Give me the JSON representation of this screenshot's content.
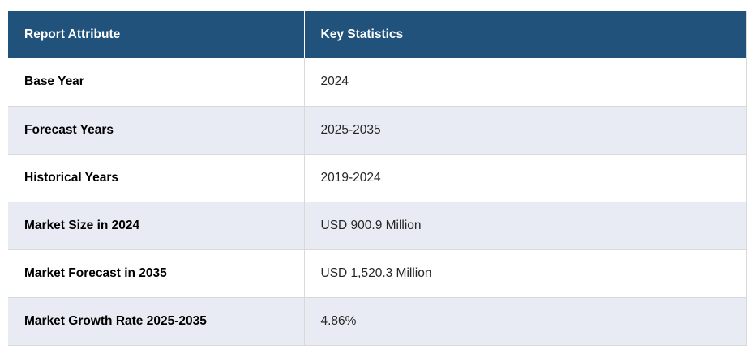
{
  "table": {
    "columns": [
      "Report Attribute",
      "Key Statistics"
    ],
    "rows": [
      {
        "attribute": "Base Year",
        "value": "2024"
      },
      {
        "attribute": "Forecast Years",
        "value": "2025-2035"
      },
      {
        "attribute": "Historical Years",
        "value": "2019-2024"
      },
      {
        "attribute": "Market Size in 2024",
        "value": "USD 900.9 Million"
      },
      {
        "attribute": "Market Forecast in 2035",
        "value": "USD 1,520.3 Million"
      },
      {
        "attribute": "Market Growth Rate 2025-2035",
        "value": "4.86%"
      }
    ]
  },
  "colors": {
    "header_bg": "#20527C",
    "header_text": "#FFFFFF",
    "row_bg": "#FFFFFF",
    "row_alt_bg": "#E8EAF4",
    "border": "#D9D9D9",
    "attribute_text": "#000000",
    "value_text": "#262626"
  },
  "chart_data": {
    "type": "table",
    "title": "",
    "columns": [
      "Report Attribute",
      "Key Statistics"
    ],
    "rows": [
      [
        "Base Year",
        "2024"
      ],
      [
        "Forecast Years",
        "2025-2035"
      ],
      [
        "Historical Years",
        "2019-2024"
      ],
      [
        "Market Size in 2024",
        "USD 900.9 Million"
      ],
      [
        "Market Forecast in 2035",
        "USD 1,520.3 Million"
      ],
      [
        "Market Growth Rate 2025-2035",
        "4.86%"
      ]
    ],
    "layout_hints": {
      "header_style": "dark-blue-bold-white",
      "row_banding": "white-and-lavender-alternating",
      "grid": "thin-light-gray-borders"
    }
  }
}
